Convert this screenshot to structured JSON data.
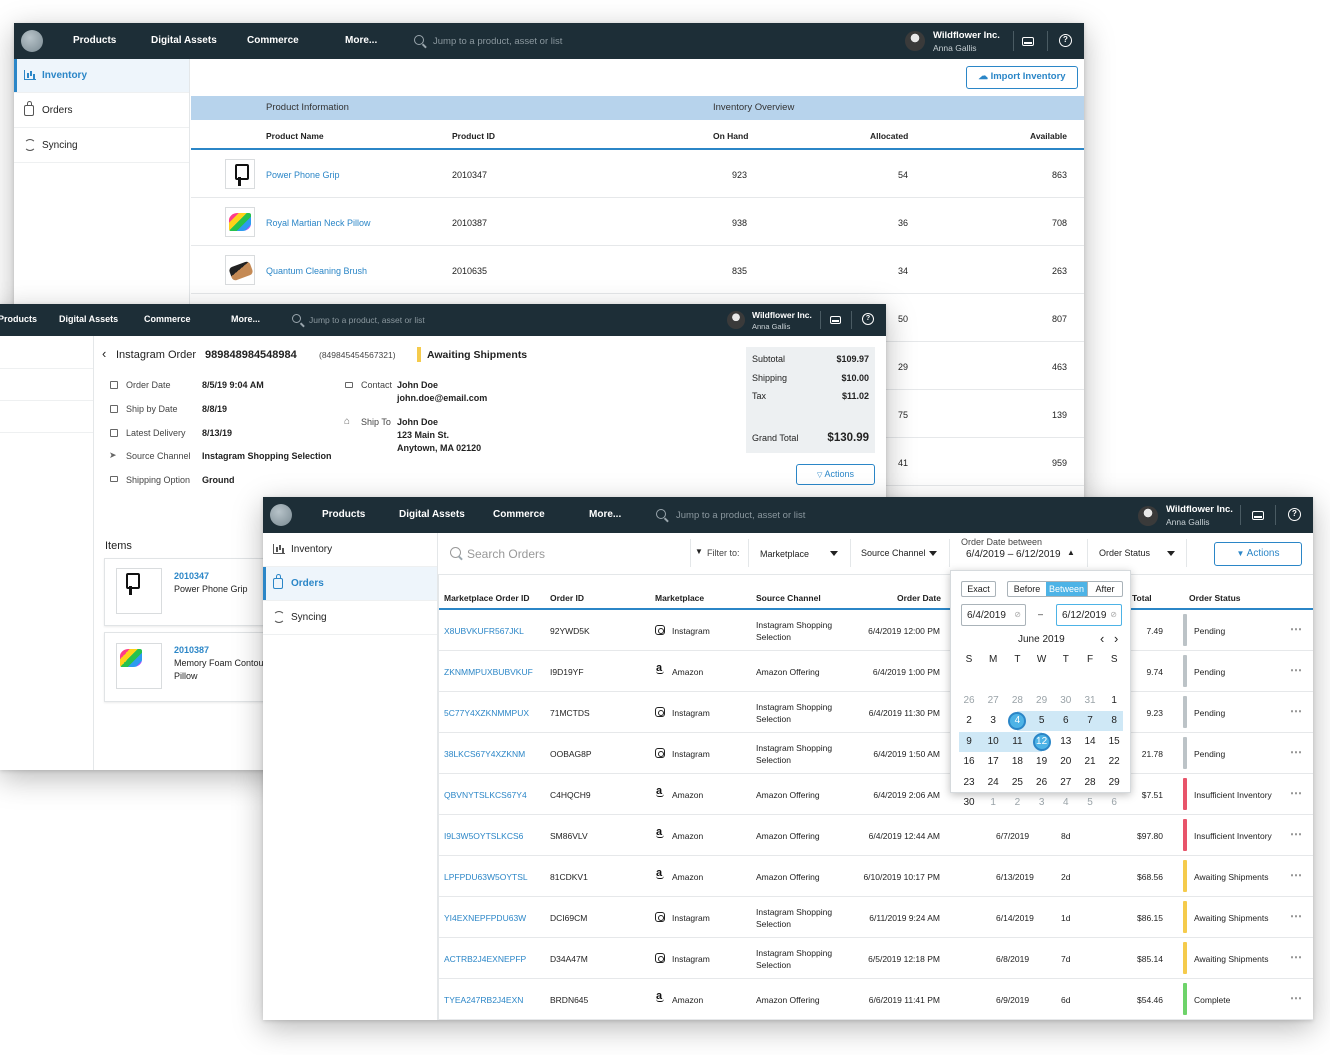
{
  "nav": {
    "products": "Products",
    "digital_assets": "Digital Assets",
    "commerce": "Commerce",
    "more": "More...",
    "search_placeholder": "Jump to a product, asset or list",
    "org": "Wildflower Inc.",
    "user": "Anna Gallis"
  },
  "sidebar": {
    "inventory": "Inventory",
    "orders": "Orders",
    "syncing": "Syncing"
  },
  "inventory": {
    "import_button": "Import Inventory",
    "group_product": "Product Information",
    "group_inventory": "Inventory Overview",
    "col_name": "Product Name",
    "col_id": "Product ID",
    "col_onhand": "On Hand",
    "col_allocated": "Allocated",
    "col_available": "Available",
    "rows": [
      {
        "name": "Power Phone Grip",
        "id": "2010347",
        "onhand": "923",
        "allocated": "54",
        "available": "863"
      },
      {
        "name": "Royal Martian Neck Pillow",
        "id": "2010387",
        "onhand": "938",
        "allocated": "36",
        "available": "708"
      },
      {
        "name": "Quantum Cleaning Brush",
        "id": "2010635",
        "onhand": "835",
        "allocated": "34",
        "available": "263"
      },
      {
        "allocated": "50",
        "available": "807"
      },
      {
        "allocated": "29",
        "available": "463"
      },
      {
        "allocated": "75",
        "available": "139"
      },
      {
        "allocated": "41",
        "available": "959"
      }
    ]
  },
  "order": {
    "title_prefix": "Instagram Order",
    "number": "989848984548984",
    "sub_number": "(849845454567321)",
    "status": "Awaiting Shipments",
    "status_color": "#f5cb4c",
    "order_date_label": "Order Date",
    "order_date": "8/5/19 9:04 AM",
    "ship_by_label": "Ship by Date",
    "ship_by": "8/8/19",
    "latest_label": "Latest Delivery",
    "latest": "8/13/19",
    "source_label": "Source Channel",
    "source": "Instagram Shopping Selection",
    "shipping_option_label": "Shipping Option",
    "shipping_option": "Ground",
    "contact_label": "Contact",
    "contact_name": "John Doe",
    "contact_email": "john.doe@email.com",
    "ship_to_label": "Ship To",
    "ship_name": "John Doe",
    "ship_street": "123 Main St.",
    "ship_city": "Anytown, MA 02120",
    "subtotal_label": "Subtotal",
    "subtotal": "$109.97",
    "shipping_label": "Shipping",
    "shipping": "$10.00",
    "tax_label": "Tax",
    "tax": "$11.02",
    "grand_label": "Grand Total",
    "grand": "$130.99",
    "actions": "Actions",
    "items_label": "Items",
    "items": [
      {
        "id": "2010347",
        "name": "Power Phone Grip"
      },
      {
        "id": "2010387",
        "name": "Memory Foam Contour",
        "name2": "Pillow"
      }
    ]
  },
  "orders": {
    "search_placeholder": "Search Orders",
    "filter_label": "Filter to:",
    "marketplace_filter": "Marketplace",
    "source_filter": "Source Channel",
    "date_filter_label": "Order Date between",
    "date_filter_value": "6/4/2019 – 6/12/2019",
    "status_filter": "Order Status",
    "actions": "Actions",
    "columns": {
      "mp_order": "Marketplace Order ID",
      "order_id": "Order ID",
      "marketplace": "Marketplace",
      "source": "Source Channel",
      "order_date": "Order Date",
      "total": "Total",
      "status": "Order Status"
    },
    "rows": [
      {
        "mp_id": "X8UBVKUFR567JKL",
        "order_id": "92YWD5K",
        "marketplace": "Instagram",
        "mp_icon": "instagram-icon",
        "source": "Instagram Shopping",
        "source2": "Selection",
        "date": "6/4/2019 12:00 PM",
        "total": "7.49",
        "status": "Pending",
        "status_color": "#bcc3c7"
      },
      {
        "mp_id": "ZKNMMPUXBUBVKUF",
        "order_id": "I9D19YF",
        "marketplace": "Amazon",
        "mp_icon": "amazon-icon",
        "source": "Amazon Offering",
        "date": "6/4/2019 1:00 PM",
        "total": "9.74",
        "status": "Pending",
        "status_color": "#bcc3c7"
      },
      {
        "mp_id": "5C77Y4XZKNMMPUX",
        "order_id": "71MCTDS",
        "marketplace": "Instagram",
        "mp_icon": "instagram-icon",
        "source": "Instagram Shopping",
        "source2": "Selection",
        "date": "6/4/2019 11:30 PM",
        "total": "9.23",
        "status": "Pending",
        "status_color": "#bcc3c7"
      },
      {
        "mp_id": "38LKCS67Y4XZKNM",
        "order_id": "OOBAG8P",
        "marketplace": "Instagram",
        "mp_icon": "instagram-icon",
        "source": "Instagram Shopping",
        "source2": "Selection",
        "date": "6/4/2019 1:50 AM",
        "total": "21.78",
        "status": "Pending",
        "status_color": "#bcc3c7"
      },
      {
        "mp_id": "QBVNYTSLKCS67Y4",
        "order_id": "C4HQCH9",
        "marketplace": "Amazon",
        "mp_icon": "amazon-icon",
        "source": "Amazon Offering",
        "date": "6/4/2019 2:06 AM",
        "total": "$7.51",
        "status": "Insufficient Inventory",
        "status_color": "#e8546a"
      },
      {
        "mp_id": "I9L3W5OYTSLKCS6",
        "order_id": "SM86VLV",
        "marketplace": "Amazon",
        "mp_icon": "amazon-icon",
        "source": "Amazon Offering",
        "date": "6/4/2019 12:44 AM",
        "ship": "6/7/2019",
        "days": "8d",
        "total": "$97.80",
        "status": "Insufficient Inventory",
        "status_color": "#e8546a"
      },
      {
        "mp_id": "LPFPDU63W5OYTSL",
        "order_id": "81CDKV1",
        "marketplace": "Amazon",
        "mp_icon": "amazon-icon",
        "source": "Amazon Offering",
        "date": "6/10/2019 10:17 PM",
        "ship": "6/13/2019",
        "days": "2d",
        "total": "$68.56",
        "status": "Awaiting Shipments",
        "status_color": "#f5cb4c"
      },
      {
        "mp_id": "YI4EXNEPFPDU63W",
        "order_id": "DCI69CM",
        "marketplace": "Instagram",
        "mp_icon": "instagram-icon",
        "source": "Instagram Shopping",
        "source2": "Selection",
        "date": "6/11/2019 9:24 AM",
        "ship": "6/14/2019",
        "days": "1d",
        "total": "$86.15",
        "status": "Awaiting Shipments",
        "status_color": "#f5cb4c"
      },
      {
        "mp_id": "ACTRB2J4EXNEPFP",
        "order_id": "D34A47M",
        "marketplace": "Instagram",
        "mp_icon": "instagram-icon",
        "source": "Instagram Shopping",
        "source2": "Selection",
        "date": "6/5/2019 12:18 PM",
        "ship": "6/8/2019",
        "days": "7d",
        "total": "$85.14",
        "status": "Awaiting Shipments",
        "status_color": "#f5cb4c"
      },
      {
        "mp_id": "TYEA247RB2J4EXN",
        "order_id": "BRDN645",
        "marketplace": "Amazon",
        "mp_icon": "amazon-icon",
        "source": "Amazon Offering",
        "date": "6/6/2019 11:41 PM",
        "ship": "6/9/2019",
        "days": "6d",
        "total": "$54.46",
        "status": "Complete",
        "status_color": "#6ed36a"
      }
    ]
  },
  "calendar": {
    "mode_exact": "Exact",
    "mode_before": "Before",
    "mode_between": "Between",
    "mode_after": "After",
    "start": "6/4/2019",
    "end": "6/12/2019",
    "dash": "–",
    "month": "June 2019",
    "weekdays": [
      "S",
      "M",
      "T",
      "W",
      "T",
      "F",
      "S"
    ],
    "weeks": [
      [
        "26",
        "27",
        "28",
        "29",
        "30",
        "31",
        "1"
      ],
      [
        "2",
        "3",
        "4",
        "5",
        "6",
        "7",
        "8"
      ],
      [
        "9",
        "10",
        "11",
        "12",
        "13",
        "14",
        "15"
      ],
      [
        "16",
        "17",
        "18",
        "19",
        "20",
        "21",
        "22"
      ],
      [
        "23",
        "24",
        "25",
        "26",
        "27",
        "28",
        "29"
      ],
      [
        "30",
        "1",
        "2",
        "3",
        "4",
        "5",
        "6"
      ]
    ],
    "accent": "#4db3e6",
    "range_color": "#cfe8f6"
  }
}
